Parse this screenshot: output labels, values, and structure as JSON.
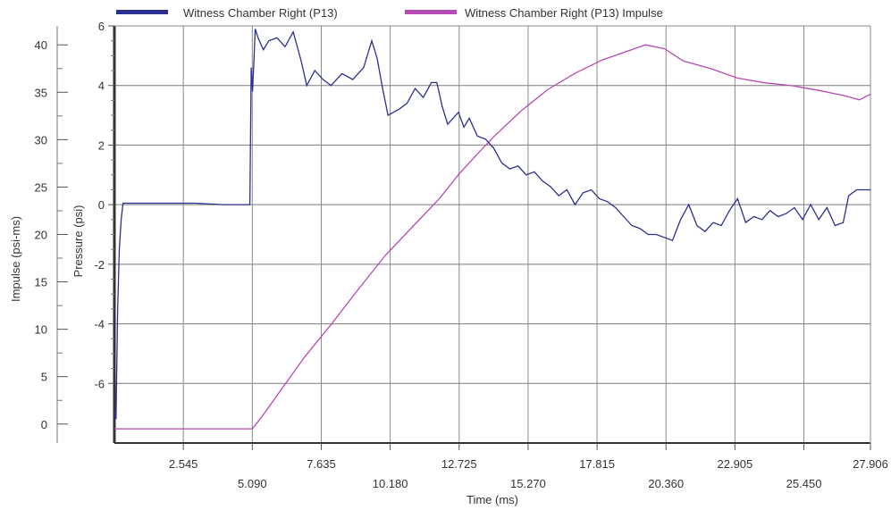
{
  "chart_data": {
    "type": "line",
    "xlabel": "Time (ms)",
    "y_left_label": "Impulse (psi-ms)",
    "y_right_label": "Pressure (psi)",
    "xlim": [
      0,
      27.906
    ],
    "x_ticks_row1": [
      "2.545",
      "7.635",
      "12.725",
      "17.815",
      "22.905",
      "27.906"
    ],
    "x_ticks_row2": [
      "5.090",
      "10.180",
      "15.270",
      "20.360",
      "25.450"
    ],
    "impulse_ylim": [
      -2,
      42
    ],
    "impulse_ticks": [
      "0",
      "5",
      "10",
      "15",
      "20",
      "25",
      "30",
      "35",
      "40"
    ],
    "pressure_ylim": [
      -8,
      6
    ],
    "pressure_ticks": [
      "-6",
      "-4",
      "-2",
      "0",
      "2",
      "4",
      "6"
    ],
    "grid": true,
    "legend_position": "top",
    "series": [
      {
        "name": "Witness Chamber Right (P13)",
        "axis": "pressure",
        "color": "#2b2f91",
        "x": [
          0,
          0.06,
          0.12,
          0.18,
          0.25,
          0.32,
          0.4,
          0.6,
          1.0,
          2.0,
          3.0,
          4.0,
          4.8,
          5.0,
          5.05,
          5.1,
          5.15,
          5.2,
          5.3,
          5.5,
          5.7,
          6.0,
          6.3,
          6.6,
          6.9,
          7.1,
          7.4,
          7.7,
          8.0,
          8.4,
          8.8,
          9.2,
          9.5,
          9.7,
          9.9,
          10.1,
          10.3,
          10.5,
          10.8,
          11.1,
          11.4,
          11.7,
          11.9,
          12.1,
          12.3,
          12.5,
          12.7,
          12.9,
          13.1,
          13.4,
          13.7,
          14.0,
          14.3,
          14.6,
          14.9,
          15.2,
          15.5,
          15.8,
          16.1,
          16.4,
          16.7,
          17.0,
          17.3,
          17.6,
          17.9,
          18.2,
          18.5,
          18.8,
          19.1,
          19.4,
          19.7,
          20.0,
          20.3,
          20.6,
          20.9,
          21.2,
          21.5,
          21.8,
          22.1,
          22.4,
          22.7,
          23.0,
          23.3,
          23.6,
          23.9,
          24.2,
          24.5,
          24.8,
          25.1,
          25.4,
          25.7,
          26.0,
          26.3,
          26.6,
          26.9,
          27.1,
          27.4,
          27.906
        ],
        "y": [
          -7.0,
          -7.2,
          -3.6,
          -1.5,
          -0.5,
          0.05,
          0.05,
          0.05,
          0.05,
          0.05,
          0.05,
          0.0,
          0.0,
          0.0,
          4.6,
          3.8,
          4.8,
          5.9,
          5.6,
          5.2,
          5.5,
          5.6,
          5.3,
          5.8,
          4.8,
          4.0,
          4.5,
          4.2,
          4.0,
          4.4,
          4.2,
          4.6,
          5.5,
          4.9,
          3.9,
          3.0,
          3.1,
          3.2,
          3.4,
          3.9,
          3.6,
          4.1,
          4.1,
          3.3,
          2.7,
          2.9,
          3.1,
          2.6,
          2.9,
          2.3,
          2.2,
          1.9,
          1.4,
          1.2,
          1.3,
          1.0,
          1.1,
          0.8,
          0.6,
          0.3,
          0.5,
          0.0,
          0.4,
          0.5,
          0.2,
          0.1,
          -0.1,
          -0.4,
          -0.7,
          -0.8,
          -1.0,
          -1.0,
          -1.1,
          -1.2,
          -0.5,
          0.0,
          -0.7,
          -0.9,
          -0.6,
          -0.7,
          -0.2,
          0.2,
          -0.6,
          -0.4,
          -0.5,
          -0.2,
          -0.4,
          -0.3,
          -0.1,
          -0.5,
          0.0,
          -0.5,
          -0.1,
          -0.7,
          -0.6,
          0.3,
          0.5,
          0.5
        ]
      },
      {
        "name": "Witness Chamber Right (P13) Impulse",
        "axis": "impulse",
        "color": "#b44ab4",
        "x": [
          0,
          1.0,
          2.0,
          3.0,
          4.0,
          4.9,
          5.09,
          5.5,
          6.0,
          7.0,
          8.0,
          9.0,
          10.0,
          11.0,
          12.0,
          12.7,
          13.4,
          14.0,
          15.0,
          16.0,
          17.0,
          18.0,
          19.0,
          19.6,
          20.3,
          21.0,
          22.0,
          23.0,
          24.0,
          25.0,
          26.0,
          27.0,
          27.5,
          27.906
        ],
        "y": [
          -0.5,
          -0.5,
          -0.5,
          -0.5,
          -0.5,
          -0.5,
          -0.5,
          1.0,
          3.0,
          7.0,
          10.5,
          14.2,
          17.8,
          20.8,
          23.8,
          26.3,
          28.5,
          30.3,
          33.0,
          35.3,
          37.0,
          38.4,
          39.4,
          40.0,
          39.6,
          38.3,
          37.5,
          36.5,
          36.0,
          35.7,
          35.2,
          34.6,
          34.2,
          34.8
        ]
      }
    ]
  }
}
